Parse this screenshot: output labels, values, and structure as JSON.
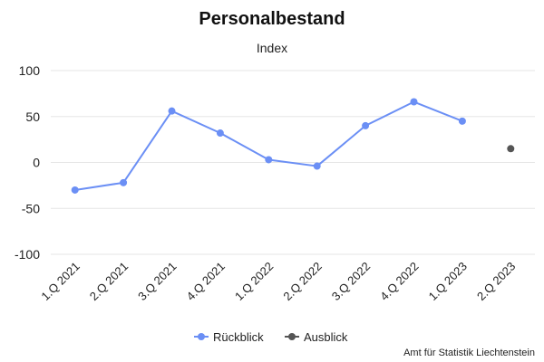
{
  "chart_data": {
    "type": "line",
    "title": "Personalbestand",
    "subtitle": "Index",
    "categories": [
      "1.Q 2021",
      "2.Q 2021",
      "3.Q 2021",
      "4.Q 2021",
      "1.Q 2022",
      "2.Q 2022",
      "3.Q 2022",
      "4.Q 2022",
      "1.Q 2023",
      "2.Q 2023"
    ],
    "ylim": [
      -100,
      100
    ],
    "yticks": [
      100,
      50,
      0,
      -50,
      -100
    ],
    "grid": true,
    "legend_position": "bottom-center",
    "series": [
      {
        "name": "Rückblick",
        "color": "#6b8ff5",
        "values": [
          -30,
          -22,
          56,
          32,
          3,
          -4,
          40,
          66,
          45,
          null
        ]
      },
      {
        "name": "Ausblick",
        "color": "#555555",
        "values": [
          null,
          null,
          null,
          null,
          null,
          null,
          null,
          null,
          null,
          15
        ]
      }
    ]
  },
  "credits": "Amt für Statistik Liechtenstein"
}
